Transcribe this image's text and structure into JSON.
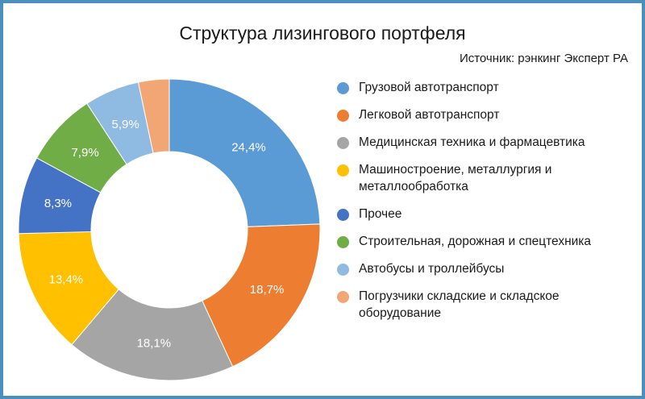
{
  "title": "Структура лизингового портфеля",
  "source": "Источник: рэнкинг Эксперт РА",
  "chart_data": {
    "type": "pie",
    "donut": true,
    "title": "Структура лизингового портфеля",
    "subtitle": "Источник: рэнкинг Эксперт РА",
    "categories": [
      "Грузовой автотранспорт",
      "Легковой автотранспорт",
      "Медицинская техника и фармацевтика",
      "Машиностроение, металлургия и металлообработка",
      "Прочее",
      "Строительная, дорожная и спецтехника",
      "Автобусы и троллейбусы",
      "Погрузчики складские и складское оборудование"
    ],
    "values": [
      24.4,
      18.7,
      18.1,
      13.4,
      8.3,
      7.9,
      5.9,
      3.3
    ],
    "labels": [
      "24,4%",
      "18,7%",
      "18,1%",
      "13,4%",
      "8,3%",
      "7,9%",
      "5,9%",
      ""
    ],
    "colors": [
      "#5b9bd5",
      "#ed7d31",
      "#a5a5a5",
      "#ffc000",
      "#4472c4",
      "#70ad47",
      "#8fbae2",
      "#f2a673"
    ],
    "legend_position": "right"
  },
  "legend": [
    {
      "label": "Грузовой автотранспорт",
      "color": "#5b9bd5"
    },
    {
      "label": "Легковой автотранспорт",
      "color": "#ed7d31"
    },
    {
      "label": "Медицинская техника и фармацевтика",
      "color": "#a5a5a5"
    },
    {
      "label": "Машиностроение, металлургия и металлообработка",
      "color": "#ffc000"
    },
    {
      "label": "Прочее",
      "color": "#4472c4"
    },
    {
      "label": "Строительная, дорожная и спецтехника",
      "color": "#70ad47"
    },
    {
      "label": "Автобусы и троллейбусы",
      "color": "#8fbae2"
    },
    {
      "label": "Погрузчики складские и складское оборудование",
      "color": "#f2a673"
    }
  ]
}
